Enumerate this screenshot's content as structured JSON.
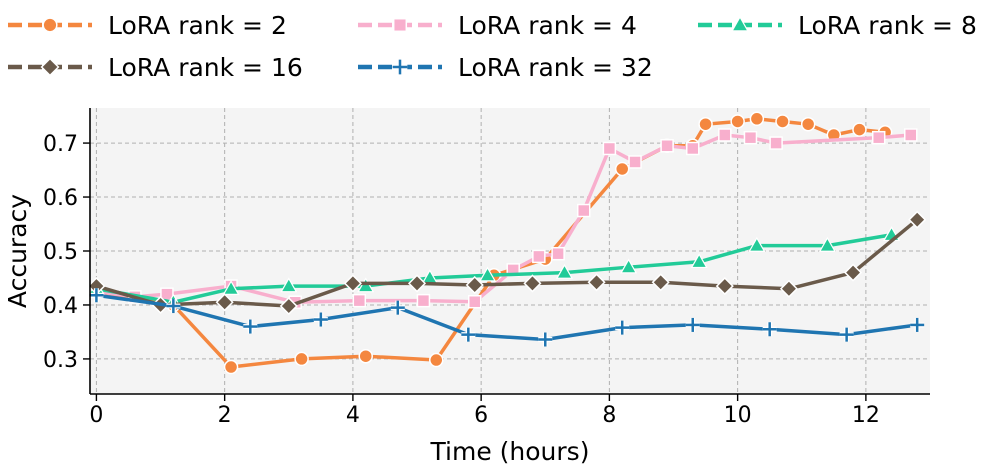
{
  "chart_data": {
    "type": "line",
    "title": "",
    "xlabel": "Time (hours)",
    "ylabel": "Accuracy",
    "xlim": [
      -0.1,
      13.0
    ],
    "ylim": [
      0.235,
      0.765
    ],
    "xticks": [
      0,
      2,
      4,
      6,
      8,
      10,
      12
    ],
    "yticks": [
      0.3,
      0.4,
      0.5,
      0.6,
      0.7
    ],
    "xtick_labels": [
      "0",
      "2",
      "4",
      "6",
      "8",
      "10",
      "12"
    ],
    "ytick_labels": [
      "0.3",
      "0.4",
      "0.5",
      "0.6",
      "0.7"
    ],
    "grid": true,
    "legend_position": "top, outside plot, 3 columns",
    "series": [
      {
        "name": "LoRA rank = 2",
        "color": "#f4873f",
        "marker": "circle",
        "x": [
          0,
          1.2,
          2.1,
          3.2,
          4.2,
          5.3,
          6.2,
          7.0,
          8.2,
          8.9,
          9.3,
          9.5,
          10.0,
          10.3,
          10.7,
          11.1,
          11.5,
          11.9,
          12.3
        ],
        "y": [
          0.425,
          0.4,
          0.285,
          0.3,
          0.305,
          0.298,
          0.455,
          0.485,
          0.652,
          0.695,
          0.695,
          0.735,
          0.74,
          0.745,
          0.74,
          0.735,
          0.715,
          0.725,
          0.72
        ]
      },
      {
        "name": "LoRA rank = 4",
        "color": "#f8afcd",
        "marker": "square",
        "x": [
          0,
          0.6,
          1.1,
          2.1,
          3.1,
          4.1,
          5.1,
          5.9,
          6.5,
          6.9,
          7.2,
          7.6,
          8.0,
          8.4,
          8.9,
          9.3,
          9.8,
          10.2,
          10.6,
          12.2,
          12.7
        ],
        "y": [
          0.425,
          0.415,
          0.42,
          0.435,
          0.405,
          0.408,
          0.408,
          0.406,
          0.465,
          0.49,
          0.495,
          0.575,
          0.69,
          0.665,
          0.695,
          0.69,
          0.715,
          0.71,
          0.7,
          0.71,
          0.715
        ]
      },
      {
        "name": "LoRA rank = 8",
        "color": "#22cb98",
        "marker": "triangle",
        "x": [
          0,
          1.2,
          2.1,
          3.0,
          4.2,
          5.2,
          6.1,
          7.3,
          8.3,
          9.4,
          10.3,
          11.4,
          12.4
        ],
        "y": [
          0.43,
          0.405,
          0.43,
          0.435,
          0.435,
          0.45,
          0.455,
          0.46,
          0.47,
          0.48,
          0.51,
          0.51,
          0.53
        ]
      },
      {
        "name": "LoRA rank = 16",
        "color": "#6a5a4a",
        "marker": "diamond",
        "x": [
          0,
          1.0,
          2.0,
          3.0,
          4.0,
          5.0,
          5.9,
          6.8,
          7.8,
          8.8,
          9.8,
          10.8,
          11.8,
          12.8
        ],
        "y": [
          0.435,
          0.4,
          0.405,
          0.398,
          0.44,
          0.44,
          0.437,
          0.44,
          0.442,
          0.442,
          0.435,
          0.43,
          0.46,
          0.558
        ]
      },
      {
        "name": "LoRA rank = 32",
        "color": "#1f75b1",
        "marker": "plus",
        "x": [
          0,
          1.2,
          2.4,
          3.5,
          4.7,
          5.8,
          7.0,
          8.2,
          9.3,
          10.5,
          11.7,
          12.8
        ],
        "y": [
          0.418,
          0.398,
          0.36,
          0.373,
          0.395,
          0.345,
          0.336,
          0.358,
          0.363,
          0.355,
          0.345,
          0.363
        ]
      }
    ]
  }
}
